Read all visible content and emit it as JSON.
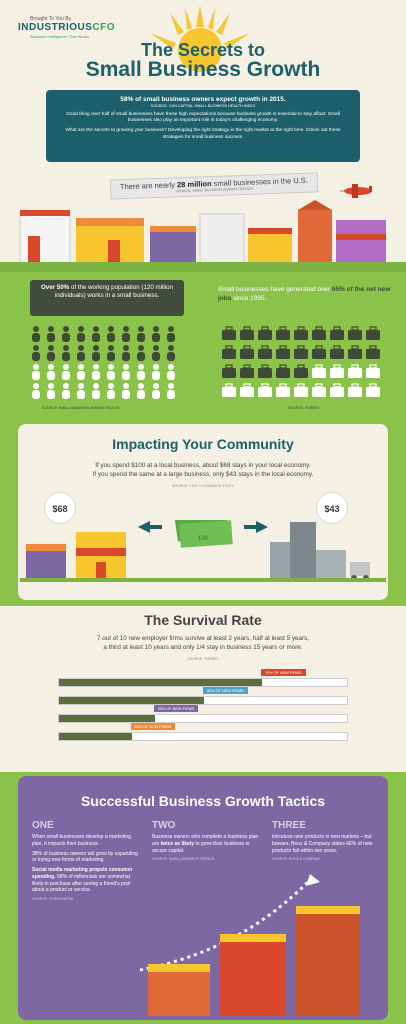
{
  "brand": {
    "tagline_top": "Brought To You By",
    "name": "INDUSTRIOUS",
    "suffix": "CFO",
    "tagline": "Business Intelligence That Works"
  },
  "title": {
    "line1": "The Secrets to",
    "line2": "Small Business Growth"
  },
  "intro": {
    "headline": "58% of small business owners expect growth in 2015.",
    "source": "SOURCE: CAN CAPITAL SMALL BUSINESS HEALTH INDEX",
    "p1": "Good thing over half of small businesses have these high expectations because business growth is essential to stay afloat. Small businesses also play an important role in today's challenging economy.",
    "p2": "What are the secrets to growing your business? Developing the right strategy in the right market at the right time. Check out these strategies for small business success."
  },
  "banner": {
    "pre": "There are nearly ",
    "bold": "28 million",
    "post": " small businesses in the U.S.",
    "source": "SOURCE: SMALL BUSINESS ADMINISTRATION"
  },
  "stats": {
    "left": {
      "bold": "Over 50%",
      "text": " of the working population (120 million individuals) works in a small business.",
      "source": "SOURCE: SMALL BUSINESS ADMINISTRATION",
      "filled_ratio": 0.5
    },
    "right": {
      "pre": "Small businesses have generated over ",
      "bold": "65% of the net new jobs",
      "post": " since 1995.",
      "source": "SOURCE: FORBES",
      "filled_ratio": 0.65
    }
  },
  "community": {
    "title": "Impacting Your Community",
    "line1": "If you spend $100 at a local business, about $68 stays in your local economy.",
    "line2": "If you spend the same at a large business, only $43 stays in the local economy.",
    "source": "SOURCE: CIVIC ECONOMICS STUDY",
    "local_amount": "$68",
    "large_amount": "$43",
    "bill_label": "100"
  },
  "survival": {
    "title": "The Survival Rate",
    "line1": "7 out of 10 new employer firms survive at least 2 years, half at least 5 years,",
    "line2": "a third at least 10 years and only 1/4 stay in business 15 years or more.",
    "source": "SOURCE: FORBES",
    "bars": [
      {
        "label": "2 YEARS",
        "callout": "70% OF NEW FIRMS",
        "value": 0.7
      },
      {
        "label": "5 YEARS",
        "callout": "50% OF NEW FIRMS",
        "value": 0.5
      },
      {
        "label": "10 YEARS",
        "callout": "33% OF NEW FIRMS",
        "value": 0.33
      },
      {
        "label": "15 YEARS OR MORE",
        "callout": "25% OF NEW FIRMS",
        "value": 0.25
      }
    ]
  },
  "tactics": {
    "title": "Successful Business Growth Tactics",
    "one": {
      "num": "ONE",
      "p1": "When small businesses develop a marketing plan, it impacts their business.",
      "p2": "38% of business owners will grow by expanding or trying new forms of marketing.",
      "p3_bold": "Social media marketing propels consumer spending.",
      "p3": " 68% of millennials are somewhat likely to purchase after seeing a friend's post about a product or service.",
      "source": "SOURCE: SYNNOVATIVA"
    },
    "two": {
      "num": "TWO",
      "p1_pre": "Business owners who complete a business plan are ",
      "p1_bold": "twice as likely",
      "p1_post": " to grow their business or secure capital.",
      "source": "SOURCE: SMALL BUSINESS TRENDS"
    },
    "three": {
      "num": "THREE",
      "p1": "Introduce new products in new markets – but beware, Booz & Company states 66% of new products fail within two years.",
      "source": "SOURCE: BOOZ & COMPANY"
    }
  },
  "colors": {
    "teal": "#1d5f6b",
    "green": "#8bc34a",
    "purple": "#7e68a4",
    "orange": "#f08a3a",
    "red": "#d9472c"
  }
}
